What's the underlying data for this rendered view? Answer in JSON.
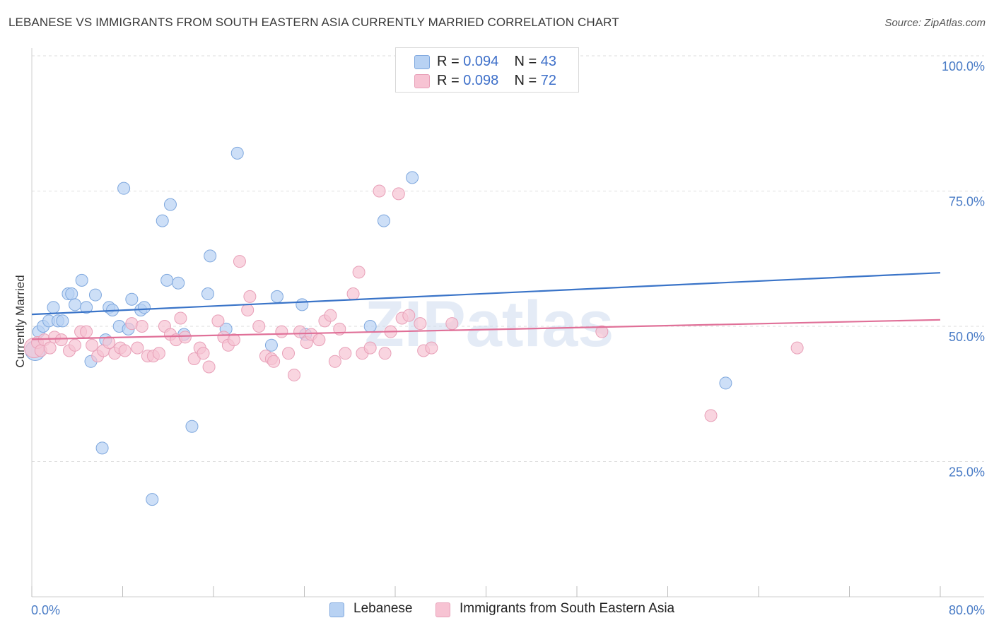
{
  "header": {
    "title": "LEBANESE VS IMMIGRANTS FROM SOUTH EASTERN ASIA CURRENTLY MARRIED CORRELATION CHART",
    "source": "Source: ZipAtlas.com"
  },
  "watermark": "ZIPatlas",
  "legend": {
    "rows": [
      {
        "r_label": "R = ",
        "r_value": "0.094",
        "n_label": "N = ",
        "n_value": "43"
      },
      {
        "r_label": "R = ",
        "r_value": "0.098",
        "n_label": "N = ",
        "n_value": "72"
      }
    ]
  },
  "colors": {
    "series1_fill": "#b8d2f3",
    "series1_stroke": "#7fa8de",
    "series1_line": "#3a74c8",
    "series2_fill": "#f7c3d3",
    "series2_stroke": "#e8a0b8",
    "series2_line": "#e07098",
    "tick_label": "#4a7cc6",
    "grid": "#dedede"
  },
  "chart_data": {
    "type": "scatter",
    "title": "LEBANESE VS IMMIGRANTS FROM SOUTH EASTERN ASIA CURRENTLY MARRIED CORRELATION CHART",
    "ylabel": "Currently Married",
    "xlabel": "",
    "xlim": [
      0,
      80
    ],
    "ylim": [
      0,
      100
    ],
    "x_tick_labels": [
      "0.0%",
      "80.0%"
    ],
    "y_ticks": [
      25,
      50,
      75,
      100
    ],
    "y_tick_labels": [
      "25.0%",
      "50.0%",
      "75.0%",
      "100.0%"
    ],
    "grid": "horizontal dashed",
    "legend_position": "top-center",
    "series": [
      {
        "name": "Lebanese",
        "r": 0.094,
        "n": 43,
        "trend": [
          [
            0,
            52.2
          ],
          [
            80,
            59.9
          ]
        ],
        "points": [
          [
            0.3,
            45.5
          ],
          [
            0.6,
            49.0
          ],
          [
            1.0,
            50.0
          ],
          [
            1.5,
            51.0
          ],
          [
            1.9,
            53.5
          ],
          [
            2.3,
            51.0
          ],
          [
            2.7,
            51.0
          ],
          [
            3.2,
            56.0
          ],
          [
            3.5,
            56.0
          ],
          [
            3.8,
            54.0
          ],
          [
            4.4,
            58.5
          ],
          [
            4.8,
            53.5
          ],
          [
            5.2,
            43.5
          ],
          [
            5.6,
            55.8
          ],
          [
            6.2,
            27.5
          ],
          [
            6.5,
            47.5
          ],
          [
            6.8,
            53.5
          ],
          [
            7.1,
            53.0
          ],
          [
            7.7,
            50.0
          ],
          [
            8.1,
            75.5
          ],
          [
            8.5,
            49.5
          ],
          [
            8.8,
            55.0
          ],
          [
            9.6,
            53.0
          ],
          [
            9.9,
            53.5
          ],
          [
            10.6,
            18.0
          ],
          [
            11.5,
            69.5
          ],
          [
            11.9,
            58.5
          ],
          [
            12.2,
            72.5
          ],
          [
            12.9,
            58.0
          ],
          [
            13.4,
            48.5
          ],
          [
            14.1,
            31.5
          ],
          [
            15.5,
            56.0
          ],
          [
            15.7,
            63.0
          ],
          [
            17.1,
            49.5
          ],
          [
            18.1,
            82.0
          ],
          [
            21.1,
            46.5
          ],
          [
            21.6,
            55.5
          ],
          [
            23.8,
            54.0
          ],
          [
            24.1,
            48.5
          ],
          [
            29.8,
            50.0
          ],
          [
            31.0,
            69.5
          ],
          [
            33.5,
            77.5
          ],
          [
            61.1,
            39.5
          ]
        ]
      },
      {
        "name": "Immigrants from South Eastern Asia",
        "r": 0.098,
        "n": 72,
        "trend": [
          [
            0,
            47.6
          ],
          [
            80,
            51.2
          ]
        ],
        "points": [
          [
            0.2,
            46.0
          ],
          [
            0.5,
            47.0
          ],
          [
            0.8,
            45.5
          ],
          [
            1.1,
            47.5
          ],
          [
            1.6,
            46.0
          ],
          [
            2.0,
            48.0
          ],
          [
            2.6,
            47.5
          ],
          [
            3.3,
            45.5
          ],
          [
            3.8,
            46.5
          ],
          [
            4.3,
            49.0
          ],
          [
            4.8,
            49.0
          ],
          [
            5.3,
            46.5
          ],
          [
            5.8,
            44.5
          ],
          [
            6.3,
            45.5
          ],
          [
            6.8,
            47.0
          ],
          [
            7.3,
            45.0
          ],
          [
            7.8,
            46.0
          ],
          [
            8.2,
            45.5
          ],
          [
            8.8,
            50.5
          ],
          [
            9.3,
            46.0
          ],
          [
            9.7,
            50.0
          ],
          [
            10.2,
            44.5
          ],
          [
            10.7,
            44.5
          ],
          [
            11.2,
            45.0
          ],
          [
            11.7,
            50.0
          ],
          [
            12.2,
            48.5
          ],
          [
            12.7,
            47.5
          ],
          [
            13.1,
            51.5
          ],
          [
            13.5,
            48.0
          ],
          [
            14.3,
            44.0
          ],
          [
            14.8,
            46.0
          ],
          [
            15.1,
            45.0
          ],
          [
            15.6,
            42.5
          ],
          [
            16.4,
            51.0
          ],
          [
            16.9,
            48.0
          ],
          [
            17.3,
            46.5
          ],
          [
            17.8,
            47.5
          ],
          [
            18.3,
            62.0
          ],
          [
            19.0,
            53.0
          ],
          [
            19.2,
            55.5
          ],
          [
            20.0,
            50.0
          ],
          [
            20.6,
            44.5
          ],
          [
            21.1,
            44.0
          ],
          [
            21.3,
            43.5
          ],
          [
            22.0,
            49.0
          ],
          [
            22.6,
            45.0
          ],
          [
            23.1,
            41.0
          ],
          [
            23.6,
            49.0
          ],
          [
            24.2,
            47.0
          ],
          [
            24.6,
            48.5
          ],
          [
            25.3,
            47.5
          ],
          [
            25.8,
            51.0
          ],
          [
            26.3,
            52.0
          ],
          [
            26.7,
            43.5
          ],
          [
            27.1,
            49.5
          ],
          [
            27.6,
            45.0
          ],
          [
            28.3,
            56.0
          ],
          [
            28.8,
            60.0
          ],
          [
            29.1,
            45.0
          ],
          [
            29.8,
            46.0
          ],
          [
            30.6,
            75.0
          ],
          [
            31.1,
            45.0
          ],
          [
            31.6,
            49.0
          ],
          [
            32.3,
            74.5
          ],
          [
            32.6,
            51.5
          ],
          [
            33.2,
            52.0
          ],
          [
            34.2,
            50.5
          ],
          [
            34.5,
            45.5
          ],
          [
            35.2,
            46.0
          ],
          [
            37.0,
            50.5
          ],
          [
            50.2,
            49.0
          ],
          [
            59.8,
            33.5
          ],
          [
            67.4,
            46.0
          ]
        ]
      }
    ]
  },
  "bottom_legend": {
    "items": [
      {
        "label": "Lebanese"
      },
      {
        "label": "Immigrants from South Eastern Asia"
      }
    ]
  }
}
